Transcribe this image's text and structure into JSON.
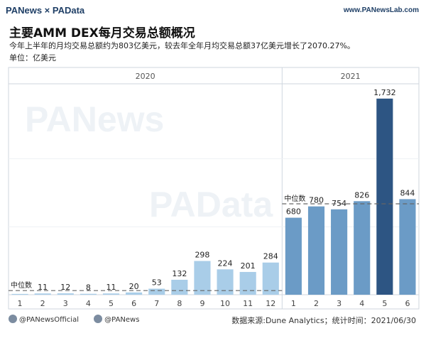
{
  "header": {
    "logo_text": "PANews × PAData",
    "site_url": "www.PANewsLab.com"
  },
  "title": "主要AMM DEX每月交易总额概况",
  "subtitle": "今年上半年的月均交易总额约为803亿美元，较去年全年月均交易总额37亿美元增长了2070.27%。",
  "unit": "单位：亿美元",
  "watermarks": [
    "PANews",
    "PAData"
  ],
  "chart_data": {
    "type": "bar",
    "panels": [
      {
        "year": "2020",
        "categories": [
          "1",
          "2",
          "3",
          "4",
          "5",
          "6",
          "7",
          "8",
          "9",
          "10",
          "11",
          "12"
        ],
        "values": [
          7,
          11,
          12,
          8,
          11,
          20,
          53,
          132,
          298,
          224,
          201,
          284
        ],
        "labels": [
          "",
          "11",
          "12",
          "8",
          "11",
          "20",
          "53",
          "132",
          "298",
          "224",
          "201",
          "284"
        ],
        "median_label": "中位数",
        "color": "#a9cde8"
      },
      {
        "year": "2021",
        "categories": [
          "1",
          "2",
          "3",
          "4",
          "5",
          "6"
        ],
        "values": [
          680,
          780,
          754,
          826,
          1732,
          844
        ],
        "labels": [
          "680",
          "780",
          "754",
          "826",
          "1,732",
          "844"
        ],
        "median_label": "中位数",
        "color": "#6b9bc6",
        "highlight_index": 4,
        "highlight_color": "#2d5583"
      }
    ],
    "ylim": [
      0,
      1800
    ]
  },
  "footer": {
    "twitter": "@PANewsOfficial",
    "weibo": "@PANews",
    "source": "数据来源:Dune Analytics；统计时间：2021/06/30"
  }
}
